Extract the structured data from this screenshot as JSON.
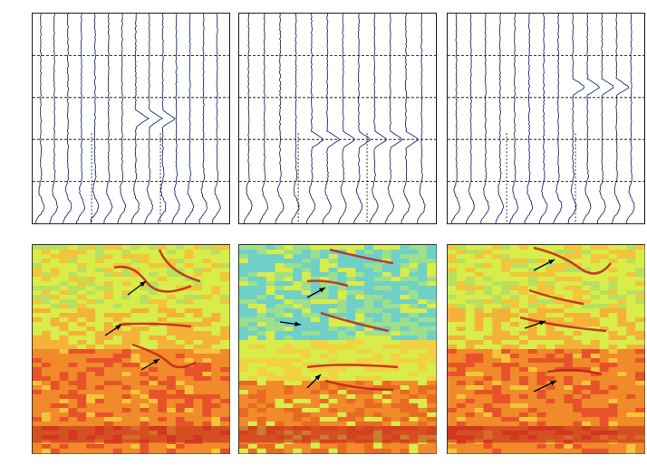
{
  "figure": {
    "description_free": true,
    "colors": {
      "trace_line": "#1f2f6e",
      "grid_dash": "#000000",
      "frame": "#1a1a1a",
      "arrow": "#000000",
      "spectrogram_low": "#6fd0c8",
      "spectrogram_mid": "#d8ec4a",
      "spectrogram_high": "#f08a2a",
      "spectrogram_peak": "#c0201a"
    },
    "top_panels": [
      {
        "name": "trace-panel-1",
        "traces": 14,
        "event_traces": [
          7,
          8,
          9
        ],
        "event_level": 0.5
      },
      {
        "name": "trace-panel-2",
        "traces": 12,
        "event_traces": [
          4,
          5,
          6,
          7,
          8,
          9,
          10
        ],
        "event_level": 0.6
      },
      {
        "name": "trace-panel-3",
        "traces": 13,
        "event_traces": [
          8,
          9,
          10,
          11
        ],
        "event_level": 0.35
      }
    ],
    "bottom_panels": [
      {
        "name": "spectrogram-panel-1",
        "background": "warm",
        "arrows": 3
      },
      {
        "name": "spectrogram-panel-2",
        "background": "cool",
        "arrows": 3
      },
      {
        "name": "spectrogram-panel-3",
        "background": "warm",
        "arrows": 3
      }
    ]
  }
}
